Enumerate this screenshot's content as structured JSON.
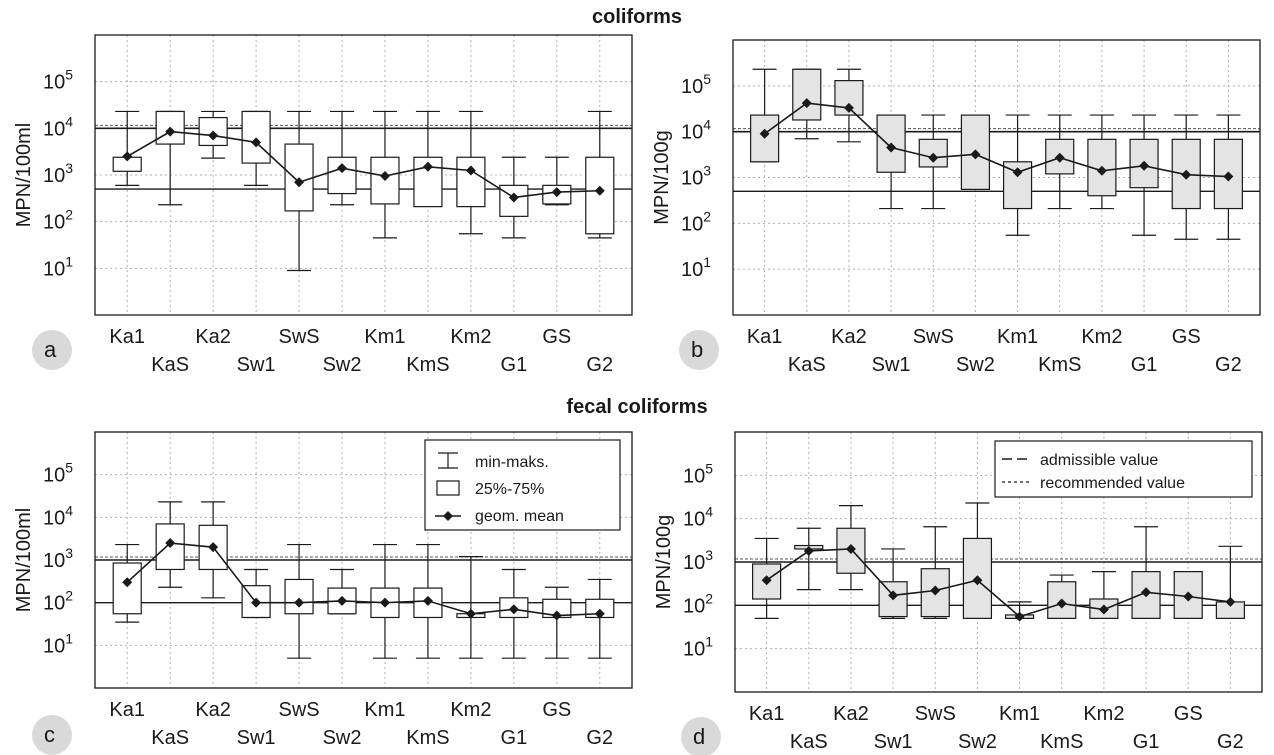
{
  "titles": {
    "top": "coliforms",
    "bottom": "fecal coliforms"
  },
  "colors": {
    "box_fill_water": "#ffffff",
    "box_fill_sediment": "#e4e4e4",
    "ink": "#1a1a1a",
    "grid": "#b0b0b0"
  },
  "legend_box": {
    "minmax": "min-maks.",
    "quartiles": "25%-75%",
    "geom_mean": "geom. mean"
  },
  "legend_lines": {
    "admissible": "admissible value",
    "recommended": "recommended value"
  },
  "chart_data": [
    {
      "panel": "a",
      "type": "box",
      "ylabel": "MPN/100ml",
      "yscale": "log",
      "ylim": [
        1,
        1000000
      ],
      "yticks": [
        10,
        100,
        1000,
        10000,
        100000
      ],
      "ytick_labels": [
        [
          "10",
          "1"
        ],
        [
          "10",
          "2"
        ],
        [
          "10",
          "3"
        ],
        [
          "10",
          "4"
        ],
        [
          "10",
          "5"
        ]
      ],
      "fill": "white",
      "categories": [
        "Ka1",
        "KaS",
        "Ka2",
        "Sw1",
        "SwS",
        "Sw2",
        "Km1",
        "KmS",
        "Km2",
        "G1",
        "GS",
        "G2"
      ],
      "min": [
        600,
        230,
        2300,
        600,
        9,
        230,
        45,
        230,
        55,
        45,
        230,
        45
      ],
      "q1": [
        1200,
        4600,
        4300,
        1800,
        170,
        400,
        240,
        210,
        210,
        130,
        240,
        55
      ],
      "q3": [
        2400,
        23000,
        17000,
        23000,
        4600,
        2400,
        2400,
        2400,
        2400,
        600,
        600,
        2400
      ],
      "max": [
        23000,
        23000,
        23000,
        23000,
        23000,
        23000,
        23000,
        23000,
        23000,
        2400,
        2400,
        23000
      ],
      "geom_mean": [
        2500,
        8500,
        7000,
        5000,
        700,
        1400,
        950,
        1500,
        1250,
        330,
        430,
        460
      ],
      "admissible_value": 10000,
      "recommended_value": 500
    },
    {
      "panel": "b",
      "type": "box",
      "ylabel": "MPN/100g",
      "yscale": "log",
      "ylim": [
        1,
        1000000
      ],
      "yticks": [
        10,
        100,
        1000,
        10000,
        100000
      ],
      "ytick_labels": [
        [
          "10",
          "1"
        ],
        [
          "10",
          "2"
        ],
        [
          "10",
          "3"
        ],
        [
          "10",
          "4"
        ],
        [
          "10",
          "5"
        ]
      ],
      "fill": "gray",
      "categories": [
        "Ka1",
        "KaS",
        "Ka2",
        "Sw1",
        "SwS",
        "Sw2",
        "Km1",
        "KmS",
        "Km2",
        "G1",
        "GS",
        "G2"
      ],
      "min": [
        2200,
        7000,
        6000,
        210,
        210,
        550,
        55,
        210,
        210,
        55,
        45,
        45
      ],
      "q1": [
        2200,
        18000,
        23000,
        1300,
        1700,
        550,
        210,
        1200,
        400,
        600,
        210,
        210
      ],
      "q3": [
        23000,
        230000,
        130000,
        23000,
        6800,
        23000,
        2200,
        6800,
        6800,
        6800,
        6800,
        6800
      ],
      "max": [
        230000,
        230000,
        230000,
        23000,
        23000,
        23000,
        23000,
        23000,
        23000,
        23000,
        23000,
        23000
      ],
      "geom_mean": [
        9000,
        42000,
        33000,
        4500,
        2700,
        3200,
        1300,
        2700,
        1400,
        1800,
        1150,
        1050
      ],
      "admissible_value": 10000,
      "recommended_value": 500
    },
    {
      "panel": "c",
      "type": "box",
      "ylabel": "MPN/100ml",
      "yscale": "log",
      "ylim": [
        1,
        1000000
      ],
      "yticks": [
        10,
        100,
        1000,
        10000,
        100000
      ],
      "ytick_labels": [
        [
          "10",
          "1"
        ],
        [
          "10",
          "2"
        ],
        [
          "10",
          "3"
        ],
        [
          "10",
          "4"
        ],
        [
          "10",
          "5"
        ]
      ],
      "fill": "white",
      "categories": [
        "Ka1",
        "KaS",
        "Ka2",
        "Sw1",
        "SwS",
        "Sw2",
        "Km1",
        "KmS",
        "Km2",
        "G1",
        "GS",
        "G2"
      ],
      "min": [
        35,
        230,
        130,
        45,
        5,
        55,
        5,
        5,
        5,
        5,
        5,
        5
      ],
      "q1": [
        55,
        600,
        600,
        45,
        55,
        55,
        45,
        45,
        45,
        45,
        45,
        45
      ],
      "q3": [
        850,
        7000,
        6500,
        250,
        350,
        220,
        220,
        220,
        55,
        130,
        120,
        120
      ],
      "max": [
        2300,
        23000,
        23000,
        600,
        2300,
        600,
        2300,
        2300,
        1200,
        600,
        230,
        350
      ],
      "geom_mean": [
        300,
        2500,
        2000,
        100,
        100,
        110,
        100,
        110,
        55,
        70,
        50,
        55
      ],
      "admissible_value": 1000,
      "recommended_value": 100
    },
    {
      "panel": "d",
      "type": "box",
      "ylabel": "MPN/100g",
      "yscale": "log",
      "ylim": [
        1,
        1000000
      ],
      "yticks": [
        10,
        100,
        1000,
        10000,
        100000
      ],
      "ytick_labels": [
        [
          "10",
          "1"
        ],
        [
          "10",
          "2"
        ],
        [
          "10",
          "3"
        ],
        [
          "10",
          "4"
        ],
        [
          "10",
          "5"
        ]
      ],
      "fill": "gray",
      "categories": [
        "Ka1",
        "KaS",
        "Ka2",
        "Sw1",
        "SwS",
        "Sw2",
        "Km1",
        "KmS",
        "Km2",
        "G1",
        "GS",
        "G2"
      ],
      "min": [
        50,
        230,
        230,
        50,
        50,
        50,
        50,
        50,
        50,
        50,
        50,
        50
      ],
      "q1": [
        140,
        2000,
        550,
        55,
        55,
        50,
        50,
        50,
        50,
        50,
        50,
        50
      ],
      "q3": [
        900,
        2400,
        6000,
        350,
        700,
        3500,
        60,
        350,
        140,
        600,
        600,
        120
      ],
      "max": [
        3500,
        6000,
        20000,
        2000,
        6500,
        23000,
        120,
        500,
        600,
        6500,
        600,
        2300
      ],
      "geom_mean": [
        380,
        1800,
        2000,
        170,
        220,
        380,
        55,
        110,
        80,
        200,
        160,
        120
      ],
      "admissible_value": 1000,
      "recommended_value": 100
    }
  ]
}
